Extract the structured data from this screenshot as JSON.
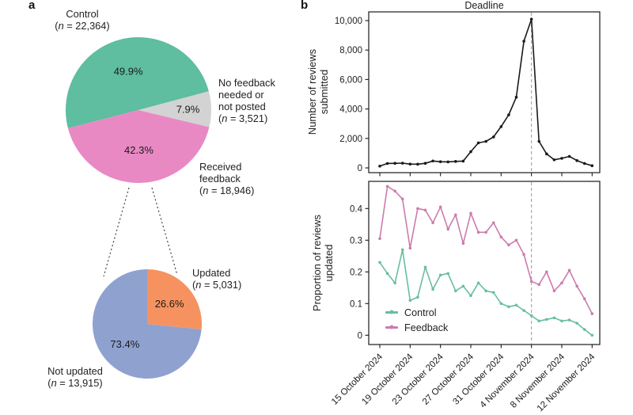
{
  "panels": {
    "a": "a",
    "b": "b"
  },
  "panel_a_labels": {
    "control": [
      "Control",
      "(n = 22,364)"
    ],
    "no_feedback": [
      "No feedback",
      "needed or",
      "not posted",
      "(n = 3,521)"
    ],
    "received": [
      "Received",
      "feedback",
      "(n = 18,946)"
    ],
    "updated": [
      "Updated",
      "(n = 5,031)"
    ],
    "not_updated": [
      "Not updated",
      "(n = 13,915)"
    ]
  },
  "chart_data": [
    {
      "id": "treatment-pie",
      "type": "pie",
      "start_deg": 15,
      "slices": [
        {
          "label": "Control",
          "n": "22,364",
          "pct": 49.9,
          "pct_label": "49.9%",
          "color": "#5fbda0"
        },
        {
          "label": "Received feedback",
          "n": "18,946",
          "pct": 42.3,
          "pct_label": "42.3%",
          "color": "#e989c4"
        },
        {
          "label": "No feedback needed or not posted",
          "n": "3,521",
          "pct": 7.9,
          "pct_label": "7.9%",
          "color": "#d3d3d3"
        }
      ]
    },
    {
      "id": "updated-pie",
      "type": "pie",
      "start_deg": 90,
      "slices": [
        {
          "label": "Not updated",
          "n": "13,915",
          "pct": 73.4,
          "pct_label": "73.4%",
          "color": "#8fa1cf"
        },
        {
          "label": "Updated",
          "n": "5,031",
          "pct": 26.6,
          "pct_label": "26.6%",
          "color": "#f6925f"
        }
      ]
    },
    {
      "id": "submissions-line",
      "type": "line",
      "title": "Deadline",
      "ylabel": "Number of reviews\nsubmitted",
      "x": [
        "15 October 2024",
        "16 October 2024",
        "17 October 2024",
        "18 October 2024",
        "19 October 2024",
        "20 October 2024",
        "21 October 2024",
        "22 October 2024",
        "23 October 2024",
        "24 October 2024",
        "25 October 2024",
        "26 October 2024",
        "27 October 2024",
        "28 October 2024",
        "29 October 2024",
        "30 October 2024",
        "31 October 2024",
        "1 November 2024",
        "2 November 2024",
        "3 November 2024",
        "4 November 2024",
        "5 November 2024",
        "6 November 2024",
        "7 November 2024",
        "8 November 2024",
        "9 November 2024",
        "10 November 2024",
        "11 November 2024",
        "12 November 2024"
      ],
      "xtick_indices": [
        0,
        4,
        8,
        12,
        16,
        20,
        24,
        28
      ],
      "xtick_labels": [
        "15 October 2024",
        "19 October 2024",
        "23 October 2024",
        "27 October 2024",
        "31 October 2024",
        "4 November 2024",
        "8 November 2024",
        "12 November 2024"
      ],
      "deadline_index": 20,
      "yticks": [
        0,
        2000,
        4000,
        6000,
        8000,
        10000
      ],
      "ytick_labels": [
        "0",
        "2,000",
        "4,000",
        "6,000",
        "8,000",
        "10,000"
      ],
      "ylim": [
        -500,
        10900
      ],
      "grid": false,
      "series": [
        {
          "name": "Reviews submitted",
          "color": "#1a1a1a",
          "values": [
            120,
            300,
            310,
            320,
            260,
            250,
            310,
            470,
            420,
            410,
            440,
            460,
            1100,
            1700,
            1800,
            2100,
            2800,
            3600,
            4800,
            8600,
            10100,
            1800,
            950,
            550,
            650,
            780,
            500,
            300,
            150
          ]
        }
      ]
    },
    {
      "id": "proportion-line",
      "type": "line",
      "ylabel": "Proportion of reviews\nupdated",
      "xtick_indices": [
        0,
        4,
        8,
        12,
        16,
        20,
        24,
        28
      ],
      "deadline_index": 20,
      "yticks": [
        0,
        0.1,
        0.2,
        0.3,
        0.4
      ],
      "ytick_labels": [
        "0",
        "0.1",
        "0.2",
        "0.3",
        "0.4"
      ],
      "ylim": [
        -0.03,
        0.485
      ],
      "grid": false,
      "legend_position": "lower left",
      "series": [
        {
          "name": "Control",
          "color": "#68bea0",
          "values": [
            0.23,
            0.195,
            0.165,
            0.27,
            0.11,
            0.12,
            0.215,
            0.145,
            0.19,
            0.195,
            0.14,
            0.155,
            0.125,
            0.165,
            0.14,
            0.135,
            0.1,
            0.09,
            0.095,
            0.078,
            0.062,
            0.045,
            0.05,
            0.055,
            0.045,
            0.048,
            0.038,
            0.018,
            0.0
          ]
        },
        {
          "name": "Feedback",
          "color": "#cc7bae",
          "values": [
            0.305,
            0.47,
            0.455,
            0.43,
            0.275,
            0.4,
            0.395,
            0.355,
            0.405,
            0.335,
            0.38,
            0.29,
            0.385,
            0.325,
            0.325,
            0.355,
            0.31,
            0.285,
            0.3,
            0.255,
            0.17,
            0.16,
            0.2,
            0.14,
            0.165,
            0.205,
            0.155,
            0.115,
            0.068
          ]
        }
      ]
    }
  ]
}
